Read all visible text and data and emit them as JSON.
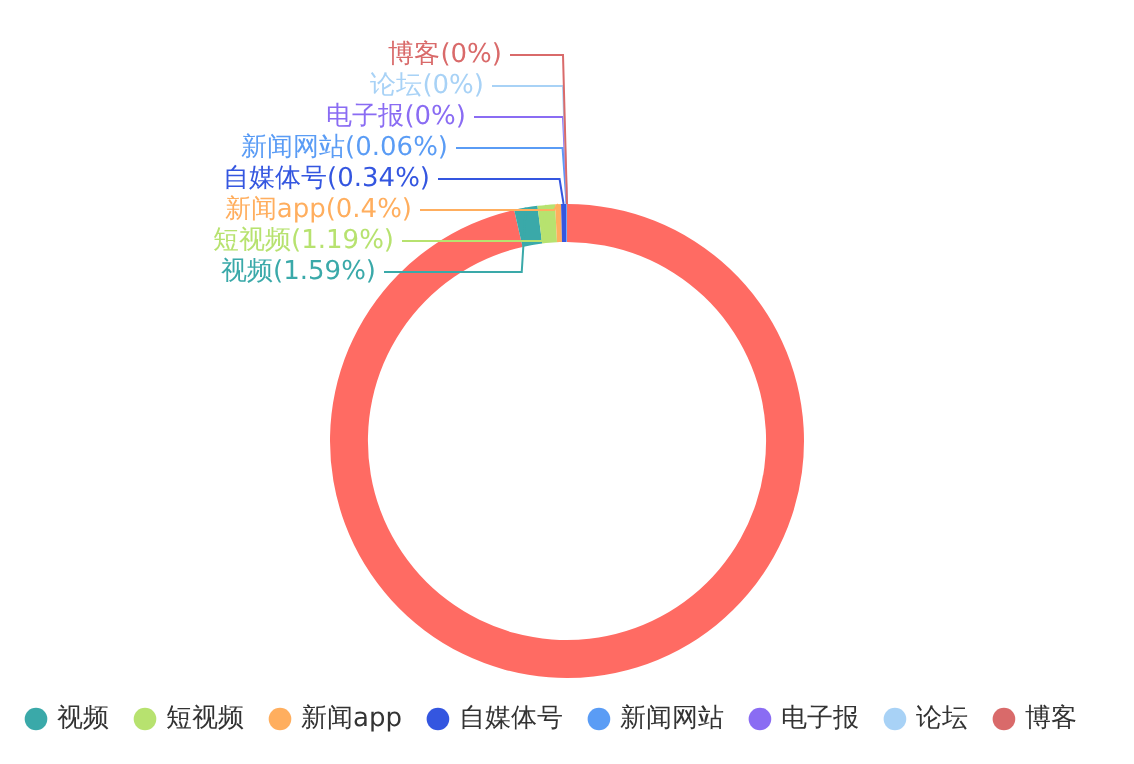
{
  "chart_data": {
    "type": "donut",
    "categories": [
      null,
      "视频",
      "短视频",
      "新闻app",
      "自媒体号",
      "新闻网站",
      "电子报",
      null,
      "论坛",
      "博客"
    ],
    "values": [
      96.42,
      1.59,
      1.19,
      0.4,
      0.34,
      0.06,
      0,
      0,
      0,
      0
    ],
    "colors": [
      "#ff6b63",
      "#3aa9a9",
      "#b7e26f",
      "#ffae5e",
      "#3456e0",
      "#5a9cf5",
      "#8a6cf3",
      "#3fc46b",
      "#a8d2f6",
      "#d96a6a"
    ],
    "value_labels": [
      null,
      "(1.59%)",
      "(1.19%)",
      "(0.4%)",
      "(0.34%)",
      "(0.06%)",
      "(0%)",
      null,
      "(0%)",
      "(0%)"
    ],
    "legend": "bottom left"
  }
}
